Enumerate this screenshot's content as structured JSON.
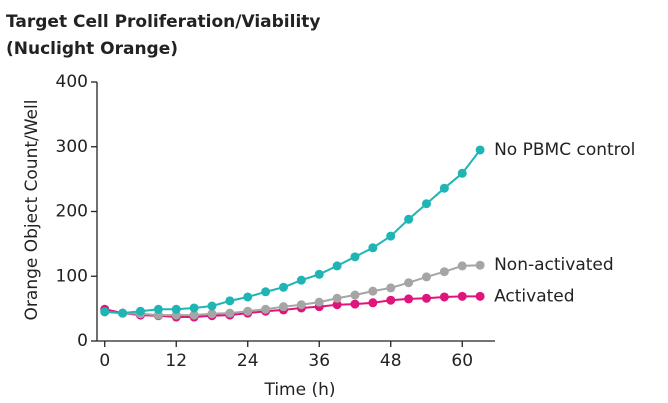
{
  "chart_data": {
    "type": "line",
    "title": [
      "Target Cell Proliferation/Viability",
      "(Nuclight Orange)"
    ],
    "x_label": "Time (h)",
    "y_label": "Orange Object Count/Well",
    "x": [
      0,
      3,
      6,
      9,
      12,
      15,
      18,
      21,
      24,
      27,
      30,
      33,
      36,
      39,
      42,
      45,
      48,
      51,
      54,
      57,
      60,
      63
    ],
    "series": [
      {
        "name": "No PBMC control",
        "color": "#1fb5b5",
        "values": [
          45,
          43,
          46,
          49,
          49,
          51,
          54,
          62,
          68,
          76,
          83,
          94,
          103,
          116,
          130,
          144,
          162,
          188,
          212,
          236,
          259,
          295
        ]
      },
      {
        "name": "Non-activated",
        "color": "#a5a5a5",
        "values": [
          45,
          43,
          42,
          40,
          40,
          40,
          42,
          43,
          46,
          49,
          53,
          56,
          60,
          66,
          71,
          77,
          82,
          90,
          99,
          107,
          116,
          117
        ]
      },
      {
        "name": "Activated",
        "color": "#e0147a",
        "values": [
          49,
          43,
          40,
          39,
          37,
          37,
          39,
          40,
          43,
          46,
          48,
          51,
          53,
          56,
          57,
          59,
          63,
          65,
          66,
          68,
          69,
          69
        ]
      }
    ],
    "xlim": [
      -1.3,
      65.5
    ],
    "ylim": [
      0,
      400
    ],
    "xticks": [
      0,
      12,
      24,
      36,
      48,
      60
    ],
    "yticks": [
      0,
      100,
      200,
      300,
      400
    ],
    "grid": false
  }
}
